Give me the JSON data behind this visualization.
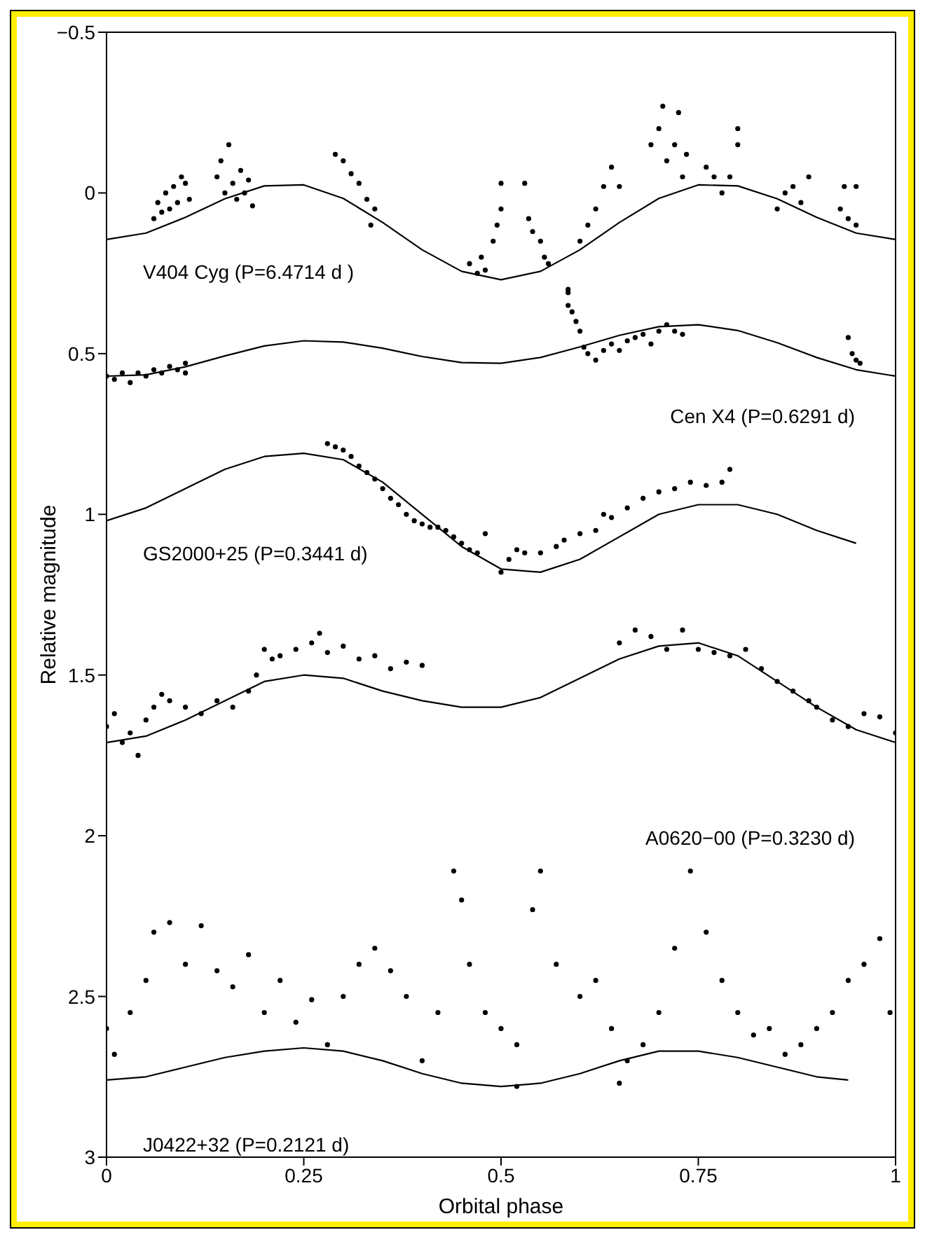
{
  "chart_data": {
    "type": "scatter",
    "xlabel": "Orbital phase",
    "ylabel": "Relative magnitude",
    "xlim": [
      0,
      1
    ],
    "xticks": [
      0,
      0.25,
      0.5,
      0.75,
      1
    ],
    "ylim": [
      3,
      -0.5
    ],
    "yticks": [
      {
        "value": -0.5,
        "label": "−0.5"
      },
      0,
      0.5,
      1,
      1.5,
      2,
      2.5,
      3
    ],
    "grid": false,
    "marker": "circle",
    "annotations": [
      "V404 Cyg (P=6.4714 d )",
      "Cen X4 (P=0.6291 d)",
      "GS2000+25 (P=0.3441 d)",
      "A0620−00 (P=0.3230 d)",
      "J0422+32 (P=0.2121 d)"
    ],
    "series": [
      {
        "color": "#000000",
        "x": [
          0.06,
          0.065,
          0.07,
          0.075,
          0.08,
          0.085,
          0.09,
          0.095,
          0.1,
          0.105,
          0.14,
          0.145,
          0.15,
          0.155,
          0.16,
          0.165,
          0.17,
          0.175,
          0.18,
          0.185,
          0.29,
          0.3,
          0.31,
          0.32,
          0.33,
          0.34,
          0.335,
          0.46,
          0.47,
          0.475,
          0.48,
          0.49,
          0.495,
          0.5,
          0.5,
          0.53,
          0.535,
          0.54,
          0.55,
          0.555,
          0.56,
          0.585,
          0.585,
          0.6,
          0.61,
          0.62,
          0.63,
          0.64,
          0.65,
          0.69,
          0.7,
          0.705,
          0.71,
          0.72,
          0.725,
          0.73,
          0.735,
          0.76,
          0.77,
          0.78,
          0.79,
          0.8,
          0.8,
          0.85,
          0.86,
          0.87,
          0.88,
          0.89,
          0.93,
          0.935,
          0.94,
          0.95,
          0.95
        ],
        "values": [
          0.08,
          0.03,
          0.06,
          0.0,
          0.05,
          -0.02,
          0.03,
          -0.05,
          -0.03,
          0.02,
          -0.05,
          -0.1,
          0.0,
          -0.15,
          -0.03,
          0.02,
          -0.07,
          0.0,
          -0.04,
          0.04,
          -0.12,
          -0.1,
          -0.06,
          -0.03,
          0.02,
          0.05,
          0.1,
          0.22,
          0.25,
          0.2,
          0.24,
          0.15,
          0.1,
          0.05,
          -0.03,
          -0.03,
          0.08,
          0.12,
          0.15,
          0.2,
          0.22,
          0.31,
          0.35,
          0.15,
          0.1,
          0.05,
          -0.02,
          -0.08,
          -0.02,
          -0.15,
          -0.2,
          -0.27,
          -0.1,
          -0.15,
          -0.25,
          -0.05,
          -0.12,
          -0.08,
          -0.05,
          0.0,
          -0.05,
          -0.15,
          -0.2,
          0.05,
          0.0,
          -0.02,
          0.03,
          -0.05,
          0.05,
          -0.02,
          0.08,
          0.1,
          -0.02
        ]
      },
      {
        "type": "line",
        "marker": "none",
        "color": "#000000",
        "x": [
          0,
          0.05,
          0.1,
          0.15,
          0.2,
          0.25,
          0.3,
          0.35,
          0.4,
          0.45,
          0.5,
          0.55,
          0.6,
          0.65,
          0.7,
          0.75,
          0.8,
          0.85,
          0.9,
          0.95,
          1
        ],
        "values": [
          0.145,
          0.125,
          0.076,
          0.018,
          -0.022,
          -0.025,
          0.017,
          0.092,
          0.177,
          0.244,
          0.27,
          0.244,
          0.177,
          0.092,
          0.017,
          -0.025,
          -0.022,
          0.018,
          0.076,
          0.125,
          0.145
        ]
      },
      {
        "color": "#000000",
        "x": [
          0,
          0.01,
          0.02,
          0.03,
          0.04,
          0.05,
          0.06,
          0.07,
          0.08,
          0.09,
          0.1,
          0.1,
          0.585,
          0.59,
          0.595,
          0.6,
          0.605,
          0.61,
          0.62,
          0.63,
          0.64,
          0.65,
          0.66,
          0.67,
          0.68,
          0.69,
          0.7,
          0.71,
          0.72,
          0.73,
          0.94,
          0.945,
          0.95,
          0.955
        ],
        "values": [
          0.57,
          0.58,
          0.56,
          0.59,
          0.56,
          0.57,
          0.55,
          0.56,
          0.54,
          0.55,
          0.53,
          0.56,
          0.3,
          0.37,
          0.4,
          0.43,
          0.48,
          0.5,
          0.52,
          0.49,
          0.47,
          0.49,
          0.46,
          0.45,
          0.44,
          0.47,
          0.43,
          0.41,
          0.43,
          0.44,
          0.45,
          0.5,
          0.52,
          0.53
        ]
      },
      {
        "type": "line",
        "marker": "none",
        "color": "#000000",
        "x": [
          0,
          0.05,
          0.1,
          0.15,
          0.2,
          0.25,
          0.3,
          0.35,
          0.4,
          0.45,
          0.5,
          0.55,
          0.6,
          0.65,
          0.7,
          0.75,
          0.8,
          0.85,
          0.9,
          0.95,
          1
        ],
        "values": [
          0.57,
          0.566,
          0.541,
          0.507,
          0.476,
          0.46,
          0.464,
          0.483,
          0.509,
          0.528,
          0.53,
          0.512,
          0.479,
          0.443,
          0.416,
          0.41,
          0.428,
          0.466,
          0.512,
          0.55,
          0.57
        ]
      },
      {
        "color": "#000000",
        "x": [
          0.28,
          0.29,
          0.3,
          0.31,
          0.32,
          0.33,
          0.34,
          0.35,
          0.36,
          0.37,
          0.38,
          0.39,
          0.4,
          0.41,
          0.42,
          0.43,
          0.44,
          0.45,
          0.46,
          0.47,
          0.48,
          0.5,
          0.51,
          0.52,
          0.53,
          0.55,
          0.57,
          0.58,
          0.6,
          0.62,
          0.63,
          0.64,
          0.66,
          0.68,
          0.7,
          0.72,
          0.74,
          0.76,
          0.78,
          0.79
        ],
        "values": [
          0.78,
          0.79,
          0.8,
          0.82,
          0.85,
          0.87,
          0.89,
          0.92,
          0.95,
          0.97,
          1.0,
          1.02,
          1.03,
          1.04,
          1.04,
          1.05,
          1.07,
          1.09,
          1.11,
          1.12,
          1.06,
          1.18,
          1.14,
          1.11,
          1.12,
          1.12,
          1.1,
          1.08,
          1.06,
          1.05,
          1.0,
          1.01,
          0.98,
          0.95,
          0.93,
          0.92,
          0.9,
          0.91,
          0.9,
          0.86
        ]
      },
      {
        "type": "line",
        "marker": "none",
        "color": "#000000",
        "x": [
          0,
          0.05,
          0.1,
          0.15,
          0.2,
          0.25,
          0.3,
          0.35,
          0.4,
          0.45,
          0.5,
          0.55,
          0.6,
          0.65,
          0.7,
          0.75,
          0.8,
          0.85,
          0.9,
          0.95
        ],
        "values": [
          1.02,
          0.98,
          0.92,
          0.86,
          0.82,
          0.81,
          0.83,
          0.9,
          1.0,
          1.1,
          1.17,
          1.18,
          1.14,
          1.07,
          1.0,
          0.97,
          0.97,
          1.0,
          1.05,
          1.09
        ]
      },
      {
        "color": "#000000",
        "x": [
          0,
          0.01,
          0.02,
          0.03,
          0.04,
          0.05,
          0.06,
          0.07,
          0.08,
          0.1,
          0.12,
          0.14,
          0.16,
          0.18,
          0.19,
          0.2,
          0.21,
          0.22,
          0.24,
          0.26,
          0.27,
          0.28,
          0.3,
          0.32,
          0.34,
          0.36,
          0.38,
          0.4,
          0.65,
          0.67,
          0.69,
          0.71,
          0.73,
          0.75,
          0.77,
          0.79,
          0.81,
          0.83,
          0.85,
          0.87,
          0.89,
          0.9,
          0.92,
          0.94,
          0.96,
          0.98,
          1
        ],
        "values": [
          1.66,
          1.62,
          1.71,
          1.68,
          1.75,
          1.64,
          1.6,
          1.56,
          1.58,
          1.6,
          1.62,
          1.58,
          1.6,
          1.55,
          1.5,
          1.42,
          1.45,
          1.44,
          1.42,
          1.4,
          1.37,
          1.43,
          1.41,
          1.45,
          1.44,
          1.48,
          1.46,
          1.47,
          1.4,
          1.36,
          1.38,
          1.42,
          1.36,
          1.42,
          1.43,
          1.44,
          1.42,
          1.48,
          1.52,
          1.55,
          1.58,
          1.6,
          1.64,
          1.66,
          1.62,
          1.63,
          1.68
        ]
      },
      {
        "type": "line",
        "marker": "none",
        "color": "#000000",
        "x": [
          0,
          0.05,
          0.1,
          0.15,
          0.2,
          0.25,
          0.3,
          0.35,
          0.4,
          0.45,
          0.5,
          0.55,
          0.6,
          0.65,
          0.7,
          0.75,
          0.8,
          0.85,
          0.9,
          0.95,
          1
        ],
        "values": [
          1.71,
          1.69,
          1.64,
          1.58,
          1.52,
          1.5,
          1.51,
          1.55,
          1.58,
          1.6,
          1.6,
          1.57,
          1.51,
          1.45,
          1.41,
          1.4,
          1.44,
          1.52,
          1.6,
          1.67,
          1.71
        ]
      },
      {
        "color": "#000000",
        "x": [
          0,
          0.01,
          0.03,
          0.05,
          0.06,
          0.08,
          0.1,
          0.12,
          0.14,
          0.16,
          0.18,
          0.2,
          0.22,
          0.24,
          0.26,
          0.28,
          0.3,
          0.32,
          0.34,
          0.36,
          0.38,
          0.4,
          0.42,
          0.44,
          0.45,
          0.46,
          0.48,
          0.5,
          0.52,
          0.52,
          0.54,
          0.55,
          0.57,
          0.6,
          0.62,
          0.64,
          0.65,
          0.66,
          0.68,
          0.7,
          0.72,
          0.74,
          0.76,
          0.78,
          0.8,
          0.82,
          0.84,
          0.86,
          0.88,
          0.9,
          0.92,
          0.94,
          0.96,
          0.98,
          0.993
        ],
        "values": [
          2.6,
          2.68,
          2.55,
          2.45,
          2.3,
          2.27,
          2.4,
          2.28,
          2.42,
          2.47,
          2.37,
          2.55,
          2.45,
          2.58,
          2.51,
          2.65,
          2.5,
          2.4,
          2.35,
          2.42,
          2.5,
          2.7,
          2.55,
          2.11,
          2.2,
          2.4,
          2.55,
          2.6,
          2.65,
          2.78,
          2.23,
          2.11,
          2.4,
          2.5,
          2.45,
          2.6,
          2.77,
          2.7,
          2.65,
          2.55,
          2.35,
          2.11,
          2.3,
          2.45,
          2.55,
          2.62,
          2.6,
          2.68,
          2.65,
          2.6,
          2.55,
          2.45,
          2.4,
          2.32,
          2.55
        ]
      },
      {
        "type": "line",
        "marker": "none",
        "color": "#000000",
        "x": [
          0,
          0.05,
          0.1,
          0.15,
          0.2,
          0.25,
          0.3,
          0.35,
          0.4,
          0.45,
          0.5,
          0.55,
          0.6,
          0.65,
          0.7,
          0.75,
          0.8,
          0.85,
          0.9,
          0.94
        ],
        "values": [
          2.76,
          2.75,
          2.72,
          2.69,
          2.67,
          2.66,
          2.67,
          2.7,
          2.74,
          2.77,
          2.78,
          2.77,
          2.74,
          2.7,
          2.67,
          2.67,
          2.69,
          2.72,
          2.75,
          2.76
        ]
      }
    ]
  }
}
